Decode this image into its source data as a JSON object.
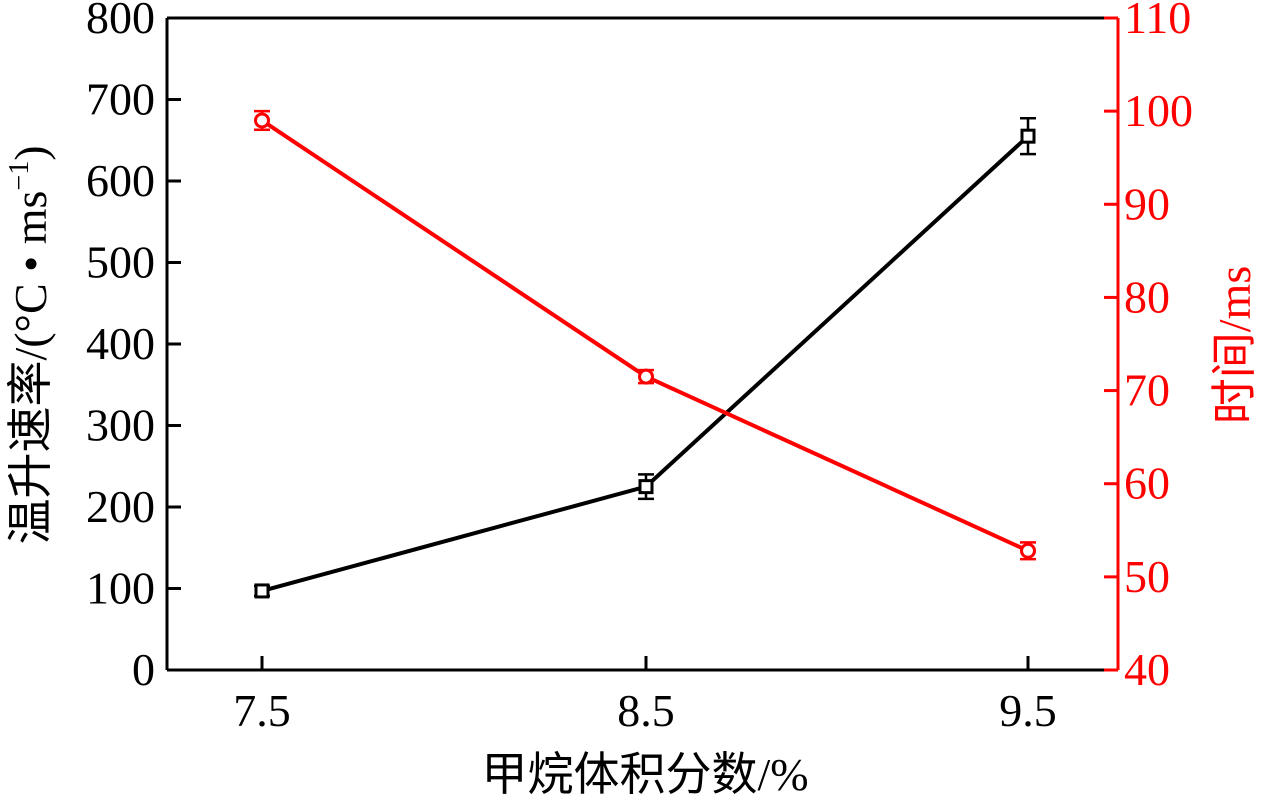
{
  "chart_data": {
    "type": "line",
    "x": [
      "7.5",
      "8.5",
      "9.5"
    ],
    "xlabel": "甲烷体积分数/%",
    "ylabel_left": "温升速率/(°C • ms",
    "ylabel_left_sup": "−1",
    "ylabel_left_end": ")",
    "ylabel_right": "时间/ms",
    "ylim_left": [
      0,
      800
    ],
    "ylim_right": [
      40,
      110
    ],
    "yticks_left": [
      "0",
      "100",
      "200",
      "300",
      "400",
      "500",
      "600",
      "700",
      "800"
    ],
    "yticks_right": [
      "40",
      "50",
      "60",
      "70",
      "80",
      "90",
      "100",
      "110"
    ],
    "grid": false,
    "colors": {
      "left_axis": "#000000",
      "right_axis": "#ff0000"
    },
    "series": [
      {
        "axis": "left",
        "marker": "square",
        "color": "#000000",
        "values": [
          97,
          225,
          655
        ],
        "errors": [
          6,
          15,
          22
        ]
      },
      {
        "axis": "right",
        "marker": "circle",
        "color": "#ff0000",
        "values": [
          99,
          71.5,
          52.8
        ],
        "errors": [
          1,
          0.7,
          0.9
        ]
      }
    ]
  }
}
